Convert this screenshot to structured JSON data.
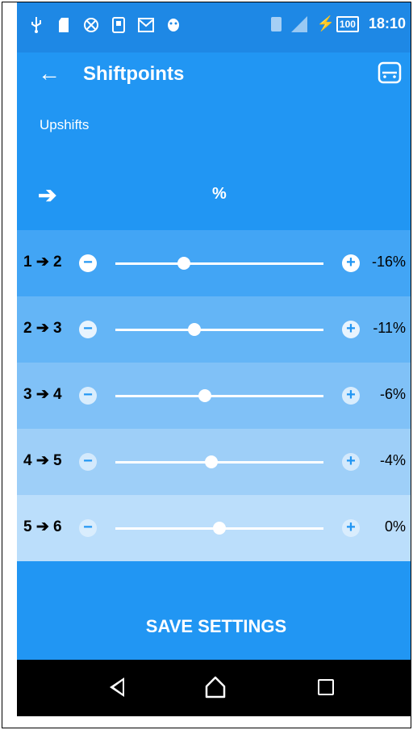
{
  "status_bar": {
    "time": "18:10",
    "battery_level": "100",
    "left_icons": [
      "usb-icon",
      "sd-icon",
      "sync-icon",
      "notification-icon",
      "gmail-icon",
      "android-icon"
    ]
  },
  "app_bar": {
    "title": "Shiftpoints",
    "back_icon": "back-arrow-icon",
    "action_icon": "car-icon"
  },
  "section_label": "Upshifts",
  "column_headers": {
    "gear_symbol": "➔",
    "percent_symbol": "%"
  },
  "shift_rows": [
    {
      "label": "1 ➔ 2",
      "value": "-16%",
      "percent": -16,
      "slider_position": 0.33,
      "bg": "#42a5f5"
    },
    {
      "label": "2 ➔ 3",
      "value": "-11%",
      "percent": -11,
      "slider_position": 0.38,
      "bg": "#64b5f6"
    },
    {
      "label": "3 ➔ 4",
      "value": "-6%",
      "percent": -6,
      "slider_position": 0.43,
      "bg": "#80c1f7"
    },
    {
      "label": "4 ➔ 5",
      "value": "-4%",
      "percent": -4,
      "slider_position": 0.46,
      "bg": "#9ecff8"
    },
    {
      "label": "5 ➔ 6",
      "value": "0%",
      "percent": 0,
      "slider_position": 0.5,
      "bg": "#bbdefb"
    }
  ],
  "save_button": {
    "label": "SAVE SETTINGS"
  },
  "nav_bar": {
    "icons": [
      "nav-back-icon",
      "nav-home-icon",
      "nav-recents-icon"
    ]
  },
  "colors": {
    "primary": "#2196f3",
    "status_bar": "#1e88e5"
  }
}
